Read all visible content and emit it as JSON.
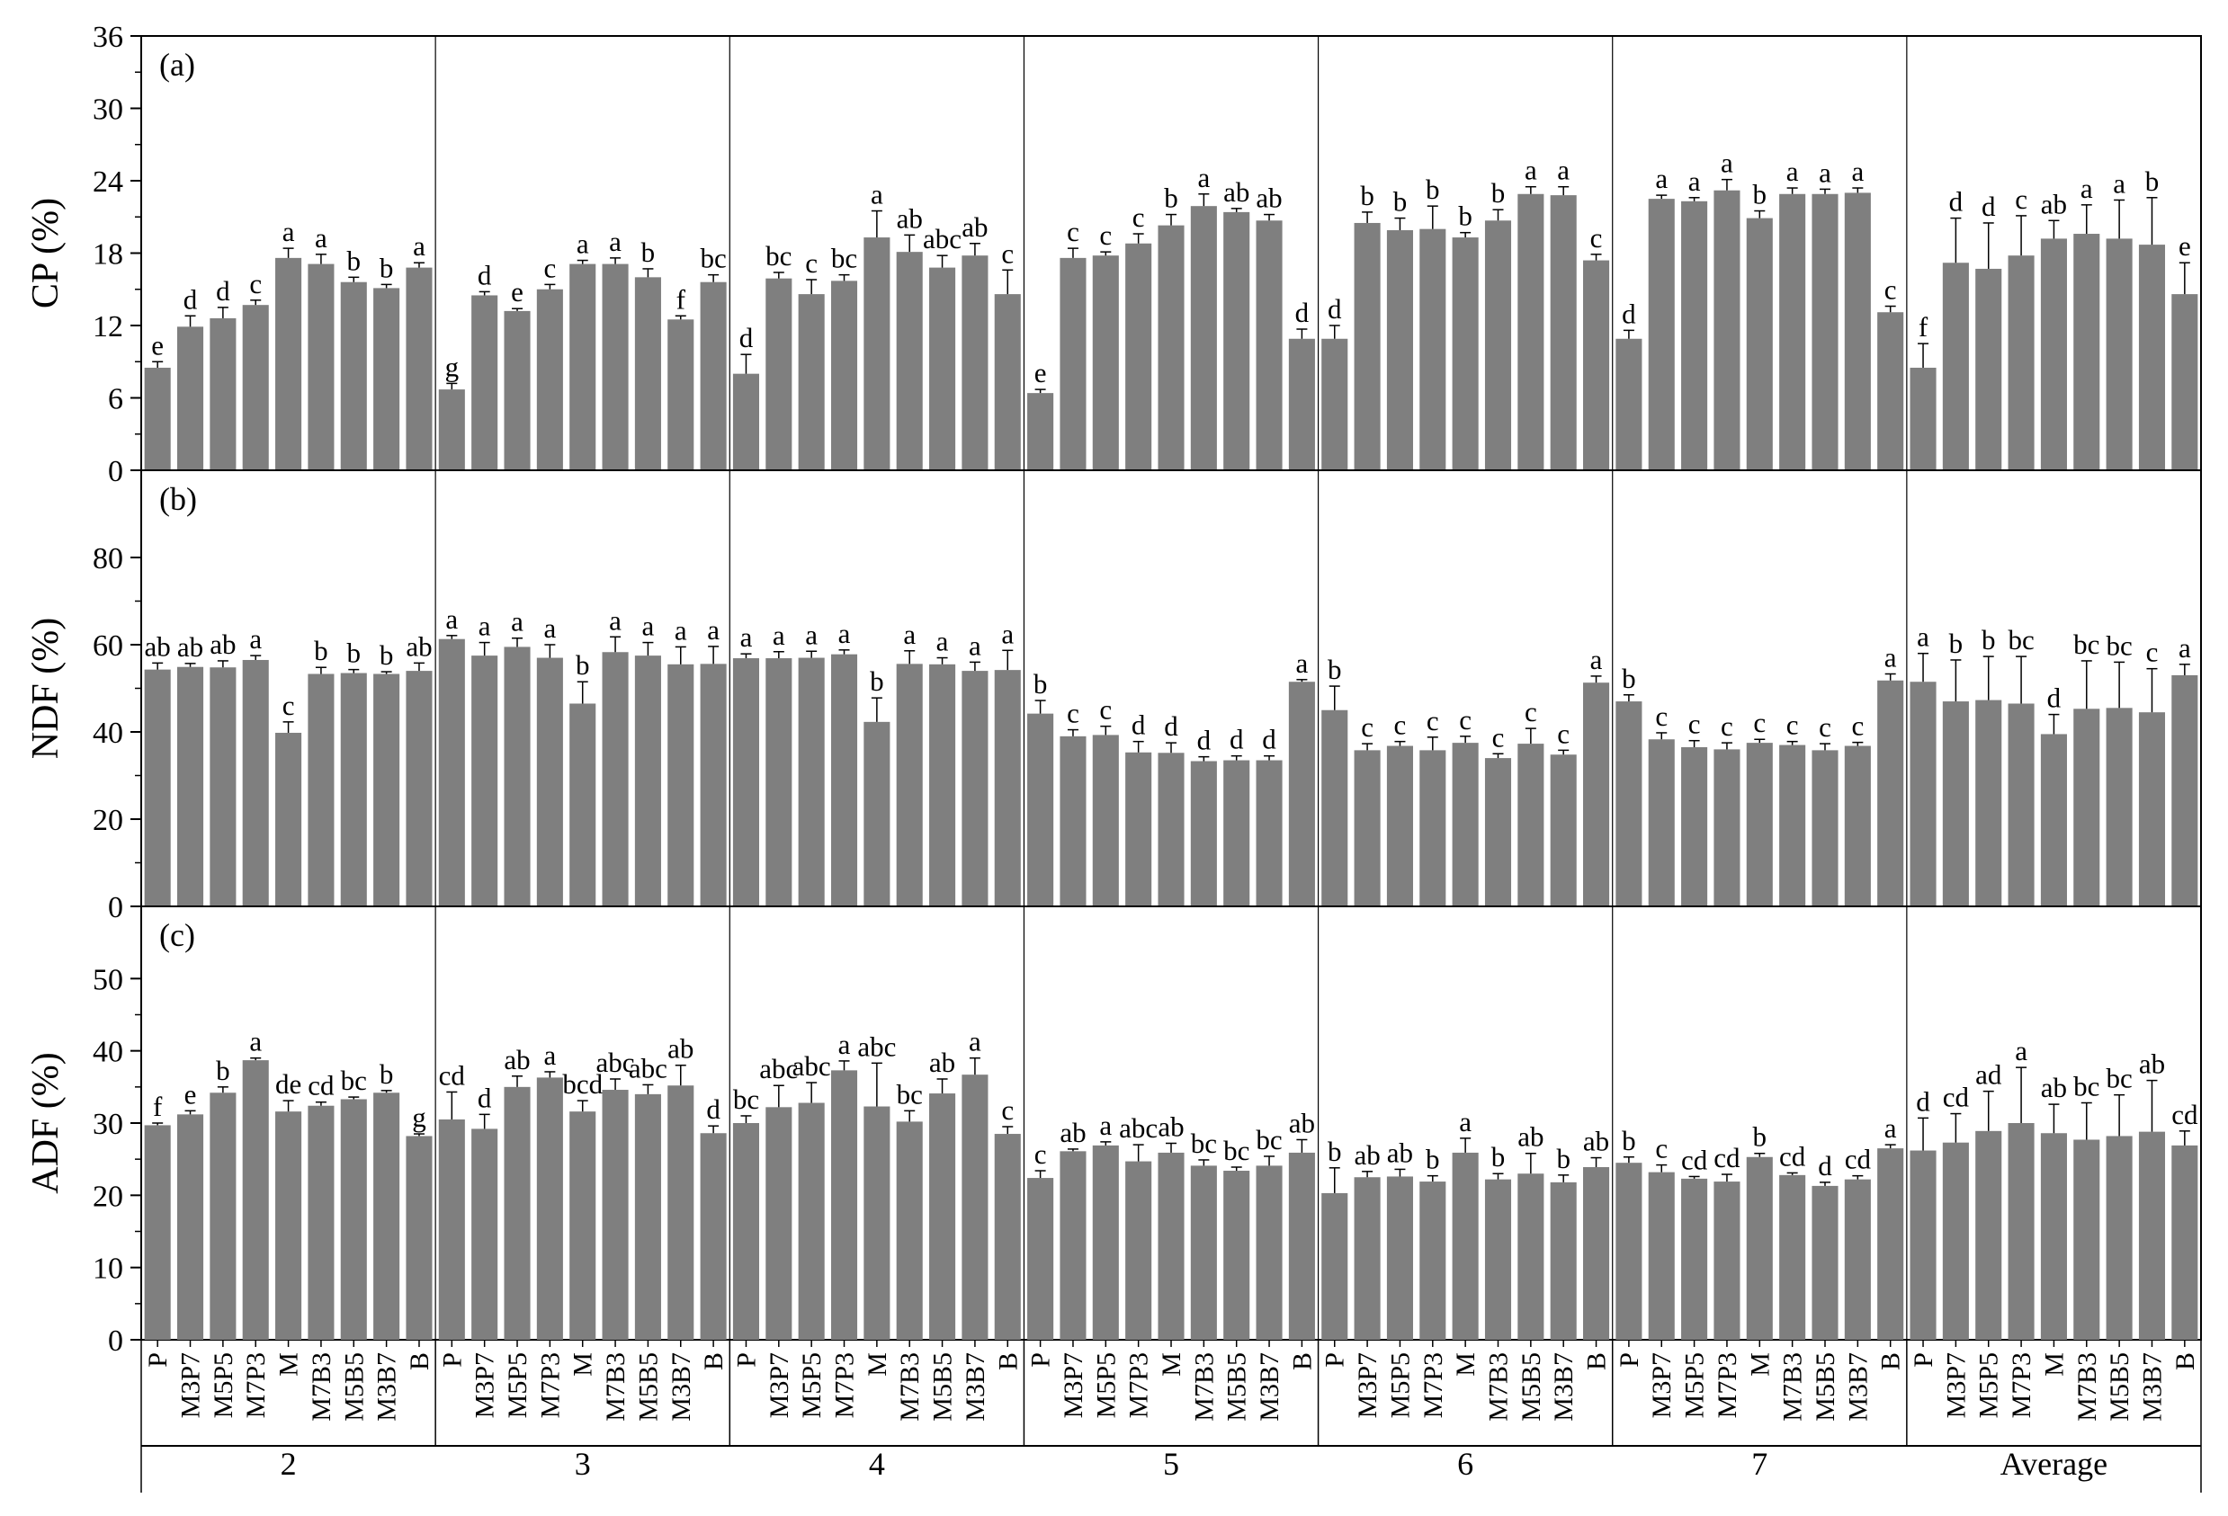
{
  "colors": {
    "bar": "#7f7f7f",
    "axis": "#000000",
    "error_bar": "#000000"
  },
  "chart_data": {
    "type": "bar",
    "groups": [
      "2",
      "3",
      "4",
      "5",
      "6",
      "7",
      "Average"
    ],
    "categories": [
      "P",
      "M3P7",
      "M5P5",
      "M7P3",
      "M",
      "M7B3",
      "M5B5",
      "M3B7",
      "B"
    ],
    "panels": [
      {
        "id": "a",
        "panel_label": "(a)",
        "ylabel": "CP (%)",
        "ylim": [
          0,
          36
        ],
        "yticks": [
          0,
          6,
          12,
          18,
          24,
          30,
          36
        ],
        "values": [
          [
            8.5,
            11.9,
            12.6,
            13.7,
            17.6,
            17.1,
            15.6,
            15.1,
            16.8
          ],
          [
            6.7,
            14.5,
            13.2,
            15.0,
            17.1,
            17.1,
            16.0,
            12.5,
            15.6
          ],
          [
            8.0,
            15.9,
            14.6,
            15.7,
            19.3,
            18.1,
            16.8,
            17.8,
            14.6
          ],
          [
            6.4,
            17.6,
            17.8,
            18.8,
            20.3,
            21.9,
            21.4,
            20.7,
            10.9
          ],
          [
            10.9,
            20.5,
            19.9,
            20.0,
            19.3,
            20.7,
            22.9,
            22.8,
            17.4
          ],
          [
            10.9,
            22.5,
            22.3,
            23.2,
            20.9,
            22.9,
            22.9,
            23.0,
            13.1
          ],
          [
            8.5,
            17.2,
            16.7,
            17.8,
            19.2,
            19.6,
            19.2,
            18.7,
            14.6
          ]
        ],
        "errors": [
          [
            0.5,
            0.9,
            0.9,
            0.4,
            0.8,
            0.8,
            0.4,
            0.3,
            0.4
          ],
          [
            0.5,
            0.3,
            0.2,
            0.4,
            0.3,
            0.5,
            0.7,
            0.3,
            0.6
          ],
          [
            1.6,
            0.5,
            1.2,
            0.5,
            2.2,
            1.4,
            1.0,
            1.0,
            2.0
          ],
          [
            0.3,
            0.8,
            0.3,
            0.8,
            0.9,
            1.0,
            0.3,
            0.5,
            0.8
          ],
          [
            1.1,
            0.9,
            1.0,
            1.9,
            0.4,
            0.9,
            0.6,
            0.7,
            0.5
          ],
          [
            0.7,
            0.3,
            0.3,
            0.9,
            0.6,
            0.5,
            0.4,
            0.4,
            0.5
          ],
          [
            2.0,
            3.7,
            3.8,
            3.3,
            1.5,
            2.4,
            3.2,
            3.9,
            2.6
          ]
        ],
        "letters": [
          [
            "e",
            "d",
            "d",
            "c",
            "a",
            "a",
            "b",
            "b",
            "a"
          ],
          [
            "g",
            "d",
            "e",
            "c",
            "a",
            "a",
            "b",
            "f",
            "bc"
          ],
          [
            "d",
            "bc",
            "c",
            "bc",
            "a",
            "ab",
            "abc",
            "ab",
            "c"
          ],
          [
            "e",
            "c",
            "c",
            "c",
            "b",
            "a",
            "ab",
            "ab",
            "d"
          ],
          [
            "d",
            "b",
            "b",
            "b",
            "b",
            "b",
            "a",
            "a",
            "c"
          ],
          [
            "d",
            "a",
            "a",
            "a",
            "b",
            "a",
            "a",
            "a",
            "c"
          ],
          [
            "f",
            "d",
            "d",
            "c",
            "ab",
            "a",
            "a",
            "b",
            "e"
          ]
        ]
      },
      {
        "id": "b",
        "panel_label": "(b)",
        "ylabel": "NDF (%)",
        "ylim": [
          0,
          100
        ],
        "yticks": [
          0,
          20,
          40,
          60,
          80
        ],
        "values": [
          [
            54.3,
            54.9,
            54.8,
            56.5,
            39.8,
            53.3,
            53.5,
            53.3,
            54.0
          ],
          [
            61.3,
            57.5,
            59.5,
            57.0,
            46.5,
            58.3,
            57.5,
            55.5,
            55.6
          ],
          [
            56.9,
            56.9,
            57.0,
            57.8,
            42.3,
            55.6,
            55.5,
            54.0,
            54.2
          ],
          [
            44.2,
            39.0,
            39.3,
            35.3,
            35.2,
            33.3,
            33.5,
            33.5,
            51.5
          ],
          [
            45.0,
            35.8,
            36.8,
            35.8,
            37.5,
            34.0,
            37.3,
            34.8,
            51.3
          ],
          [
            47.0,
            38.3,
            36.5,
            36.0,
            37.5,
            37.0,
            35.8,
            36.8,
            51.8
          ],
          [
            51.5,
            47.0,
            47.3,
            46.5,
            39.5,
            45.3,
            45.5,
            44.5,
            53.0
          ]
        ],
        "errors": [
          [
            1.5,
            0.8,
            1.5,
            1.0,
            2.5,
            1.5,
            0.8,
            0.5,
            1.8
          ],
          [
            0.8,
            3.0,
            2.0,
            3.0,
            5.0,
            3.5,
            3.0,
            4.0,
            4.0
          ],
          [
            1.0,
            1.5,
            1.5,
            1.0,
            5.5,
            3.0,
            1.5,
            2.0,
            4.5
          ],
          [
            3.0,
            1.5,
            2.0,
            2.5,
            2.3,
            1.0,
            1.0,
            1.0,
            0.5
          ],
          [
            5.5,
            1.5,
            1.0,
            3.0,
            1.5,
            1.0,
            3.5,
            1.0,
            1.5
          ],
          [
            1.5,
            1.5,
            1.5,
            1.5,
            0.8,
            0.8,
            1.5,
            0.8,
            1.5
          ],
          [
            6.5,
            9.5,
            10.0,
            10.8,
            4.5,
            11.0,
            10.5,
            10.0,
            2.5
          ]
        ],
        "letters": [
          [
            "ab",
            "ab",
            "ab",
            "a",
            "c",
            "b",
            "b",
            "b",
            "ab"
          ],
          [
            "a",
            "a",
            "a",
            "a",
            "b",
            "a",
            "a",
            "a",
            "a"
          ],
          [
            "a",
            "a",
            "a",
            "a",
            "b",
            "a",
            "a",
            "a",
            "a"
          ],
          [
            "b",
            "c",
            "c",
            "d",
            "d",
            "d",
            "d",
            "d",
            "a"
          ],
          [
            "b",
            "c",
            "c",
            "c",
            "c",
            "c",
            "c",
            "c",
            "a"
          ],
          [
            "b",
            "c",
            "c",
            "c",
            "c",
            "c",
            "c",
            "c",
            "a"
          ],
          [
            "a",
            "b",
            "b",
            "bc",
            "d",
            "bc",
            "bc",
            "c",
            "a"
          ]
        ]
      },
      {
        "id": "c",
        "panel_label": "(c)",
        "ylabel": "ADF (%)",
        "ylim": [
          0,
          60
        ],
        "yticks": [
          0,
          10,
          20,
          30,
          40,
          50
        ],
        "values": [
          [
            29.7,
            31.2,
            34.2,
            38.7,
            31.6,
            32.4,
            33.3,
            34.2,
            28.2
          ],
          [
            30.5,
            29.2,
            35.0,
            36.3,
            31.6,
            34.6,
            34.0,
            35.2,
            28.6
          ],
          [
            30.0,
            32.2,
            32.8,
            37.3,
            32.3,
            30.2,
            34.1,
            36.7,
            28.5
          ],
          [
            22.4,
            26.1,
            26.9,
            24.7,
            25.9,
            24.1,
            23.4,
            24.1,
            25.9
          ],
          [
            20.3,
            22.5,
            22.6,
            21.9,
            25.9,
            22.2,
            23.0,
            21.8,
            23.9
          ],
          [
            24.5,
            23.2,
            22.3,
            21.9,
            25.3,
            22.8,
            21.3,
            22.2,
            26.5
          ],
          [
            26.2,
            27.3,
            28.9,
            30.0,
            28.6,
            27.7,
            28.2,
            28.8,
            26.9
          ]
        ],
        "errors": [
          [
            0.3,
            0.5,
            0.8,
            0.3,
            1.5,
            0.5,
            0.3,
            0.3,
            0.3
          ],
          [
            3.8,
            2.0,
            1.5,
            0.8,
            1.5,
            1.5,
            1.3,
            2.8,
            1.0
          ],
          [
            1.0,
            3.0,
            2.8,
            1.3,
            6.0,
            1.5,
            2.0,
            2.3,
            1.0
          ],
          [
            1.0,
            0.3,
            0.5,
            2.3,
            1.3,
            0.8,
            0.5,
            1.3,
            1.8
          ],
          [
            3.5,
            0.8,
            1.0,
            0.8,
            2.0,
            0.8,
            2.8,
            1.0,
            1.3
          ],
          [
            0.8,
            1.0,
            0.3,
            1.0,
            0.5,
            0.3,
            0.5,
            0.5,
            0.5
          ],
          [
            4.5,
            4.0,
            5.5,
            7.7,
            4.0,
            5.1,
            5.7,
            7.1,
            2.0
          ]
        ],
        "letters": [
          [
            "f",
            "e",
            "b",
            "a",
            "de",
            "cd",
            "bc",
            "b",
            "g"
          ],
          [
            "cd",
            "d",
            "ab",
            "a",
            "bcd",
            "abc",
            "abc",
            "ab",
            "d"
          ],
          [
            "bc",
            "abc",
            "abc",
            "a",
            "abc",
            "bc",
            "ab",
            "a",
            "c"
          ],
          [
            "c",
            "ab",
            "a",
            "abc",
            "ab",
            "bc",
            "bc",
            "bc",
            "ab"
          ],
          [
            "b",
            "ab",
            "ab",
            "b",
            "a",
            "b",
            "ab",
            "b",
            "ab"
          ],
          [
            "b",
            "c",
            "cd",
            "cd",
            "b",
            "cd",
            "d",
            "cd",
            "a"
          ],
          [
            "d",
            "cd",
            "ad",
            "a",
            "ab",
            "bc",
            "bc",
            "ab",
            "cd"
          ]
        ]
      }
    ],
    "legend": "none",
    "grid": false
  }
}
